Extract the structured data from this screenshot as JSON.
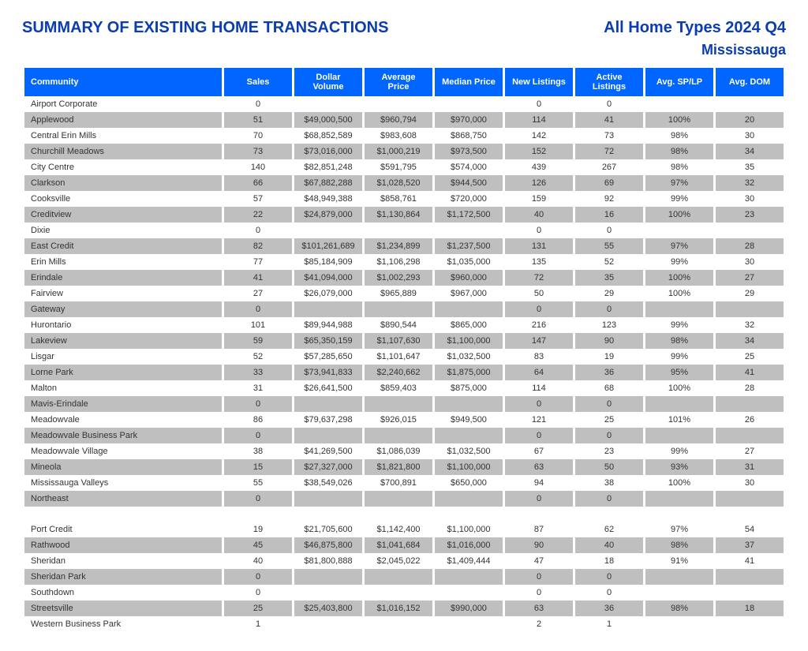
{
  "header": {
    "title": "SUMMARY OF EXISTING HOME TRANSACTIONS",
    "filter": "All Home Types 2024 Q4",
    "region": "Mississauga"
  },
  "table": {
    "columns": [
      "Community",
      "Sales",
      "Dollar Volume",
      "Average Price",
      "Median Price",
      "New Listings",
      "Active Listings",
      "Avg. SP/LP",
      "Avg. DOM"
    ],
    "header_bg": "#0066ff",
    "header_fg": "#ffffff",
    "shade_bg": "#bfbfbf",
    "rows": [
      {
        "shade": false,
        "cells": [
          "Airport Corporate",
          "0",
          "",
          "",
          "",
          "0",
          "0",
          "",
          ""
        ]
      },
      {
        "shade": true,
        "cells": [
          "Applewood",
          "51",
          "$49,000,500",
          "$960,794",
          "$970,000",
          "114",
          "41",
          "100%",
          "20"
        ]
      },
      {
        "shade": false,
        "cells": [
          "Central Erin Mills",
          "70",
          "$68,852,589",
          "$983,608",
          "$868,750",
          "142",
          "73",
          "98%",
          "30"
        ]
      },
      {
        "shade": true,
        "cells": [
          "Churchill Meadows",
          "73",
          "$73,016,000",
          "$1,000,219",
          "$973,500",
          "152",
          "72",
          "98%",
          "34"
        ]
      },
      {
        "shade": false,
        "cells": [
          "City Centre",
          "140",
          "$82,851,248",
          "$591,795",
          "$574,000",
          "439",
          "267",
          "98%",
          "35"
        ]
      },
      {
        "shade": true,
        "cells": [
          "Clarkson",
          "66",
          "$67,882,288",
          "$1,028,520",
          "$944,500",
          "126",
          "69",
          "97%",
          "32"
        ]
      },
      {
        "shade": false,
        "cells": [
          "Cooksville",
          "57",
          "$48,949,388",
          "$858,761",
          "$720,000",
          "159",
          "92",
          "99%",
          "30"
        ]
      },
      {
        "shade": true,
        "cells": [
          "Creditview",
          "22",
          "$24,879,000",
          "$1,130,864",
          "$1,172,500",
          "40",
          "16",
          "100%",
          "23"
        ]
      },
      {
        "shade": false,
        "cells": [
          "Dixie",
          "0",
          "",
          "",
          "",
          "0",
          "0",
          "",
          ""
        ]
      },
      {
        "shade": true,
        "cells": [
          "East Credit",
          "82",
          "$101,261,689",
          "$1,234,899",
          "$1,237,500",
          "131",
          "55",
          "97%",
          "28"
        ]
      },
      {
        "shade": false,
        "cells": [
          "Erin Mills",
          "77",
          "$85,184,909",
          "$1,106,298",
          "$1,035,000",
          "135",
          "52",
          "99%",
          "30"
        ]
      },
      {
        "shade": true,
        "cells": [
          "Erindale",
          "41",
          "$41,094,000",
          "$1,002,293",
          "$960,000",
          "72",
          "35",
          "100%",
          "27"
        ]
      },
      {
        "shade": false,
        "cells": [
          "Fairview",
          "27",
          "$26,079,000",
          "$965,889",
          "$967,000",
          "50",
          "29",
          "100%",
          "29"
        ]
      },
      {
        "shade": true,
        "cells": [
          "Gateway",
          "0",
          "",
          "",
          "",
          "0",
          "0",
          "",
          ""
        ]
      },
      {
        "shade": false,
        "cells": [
          "Hurontario",
          "101",
          "$89,944,988",
          "$890,544",
          "$865,000",
          "216",
          "123",
          "99%",
          "32"
        ]
      },
      {
        "shade": true,
        "cells": [
          "Lakeview",
          "59",
          "$65,350,159",
          "$1,107,630",
          "$1,100,000",
          "147",
          "90",
          "98%",
          "34"
        ]
      },
      {
        "shade": false,
        "cells": [
          "Lisgar",
          "52",
          "$57,285,650",
          "$1,101,647",
          "$1,032,500",
          "83",
          "19",
          "99%",
          "25"
        ]
      },
      {
        "shade": true,
        "cells": [
          "Lorne Park",
          "33",
          "$73,941,833",
          "$2,240,662",
          "$1,875,000",
          "64",
          "36",
          "95%",
          "41"
        ]
      },
      {
        "shade": false,
        "cells": [
          "Malton",
          "31",
          "$26,641,500",
          "$859,403",
          "$875,000",
          "114",
          "68",
          "100%",
          "28"
        ]
      },
      {
        "shade": true,
        "cells": [
          "Mavis-Erindale",
          "0",
          "",
          "",
          "",
          "0",
          "0",
          "",
          ""
        ]
      },
      {
        "shade": false,
        "cells": [
          "Meadowvale",
          "86",
          "$79,637,298",
          "$926,015",
          "$949,500",
          "121",
          "25",
          "101%",
          "26"
        ]
      },
      {
        "shade": true,
        "cells": [
          "Meadowvale Business Park",
          "0",
          "",
          "",
          "",
          "0",
          "0",
          "",
          ""
        ]
      },
      {
        "shade": false,
        "cells": [
          "Meadowvale Village",
          "38",
          "$41,269,500",
          "$1,086,039",
          "$1,032,500",
          "67",
          "23",
          "99%",
          "27"
        ]
      },
      {
        "shade": true,
        "cells": [
          "Mineola",
          "15",
          "$27,327,000",
          "$1,821,800",
          "$1,100,000",
          "63",
          "50",
          "93%",
          "31"
        ]
      },
      {
        "shade": false,
        "cells": [
          "Mississauga Valleys",
          "55",
          "$38,549,026",
          "$700,891",
          "$650,000",
          "94",
          "38",
          "100%",
          "30"
        ]
      },
      {
        "shade": true,
        "cells": [
          "Northeast",
          "0",
          "",
          "",
          "",
          "0",
          "0",
          "",
          ""
        ]
      },
      {
        "shade": false,
        "cells": [
          "",
          "",
          "",
          "",
          "",
          "",
          "",
          "",
          ""
        ]
      },
      {
        "shade": false,
        "cells": [
          "Port Credit",
          "19",
          "$21,705,600",
          "$1,142,400",
          "$1,100,000",
          "87",
          "62",
          "97%",
          "54"
        ]
      },
      {
        "shade": true,
        "cells": [
          "Rathwood",
          "45",
          "$46,875,800",
          "$1,041,684",
          "$1,016,000",
          "90",
          "40",
          "98%",
          "37"
        ]
      },
      {
        "shade": false,
        "cells": [
          "Sheridan",
          "40",
          "$81,800,888",
          "$2,045,022",
          "$1,409,444",
          "47",
          "18",
          "91%",
          "41"
        ]
      },
      {
        "shade": true,
        "cells": [
          "Sheridan Park",
          "0",
          "",
          "",
          "",
          "0",
          "0",
          "",
          ""
        ]
      },
      {
        "shade": false,
        "cells": [
          "Southdown",
          "0",
          "",
          "",
          "",
          "0",
          "0",
          "",
          ""
        ]
      },
      {
        "shade": true,
        "cells": [
          "Streetsville",
          "25",
          "$25,403,800",
          "$1,016,152",
          "$990,000",
          "63",
          "36",
          "98%",
          "18"
        ]
      },
      {
        "shade": false,
        "cells": [
          "Western Business Park",
          "1",
          "",
          "",
          "",
          "2",
          "1",
          "",
          ""
        ]
      }
    ]
  }
}
